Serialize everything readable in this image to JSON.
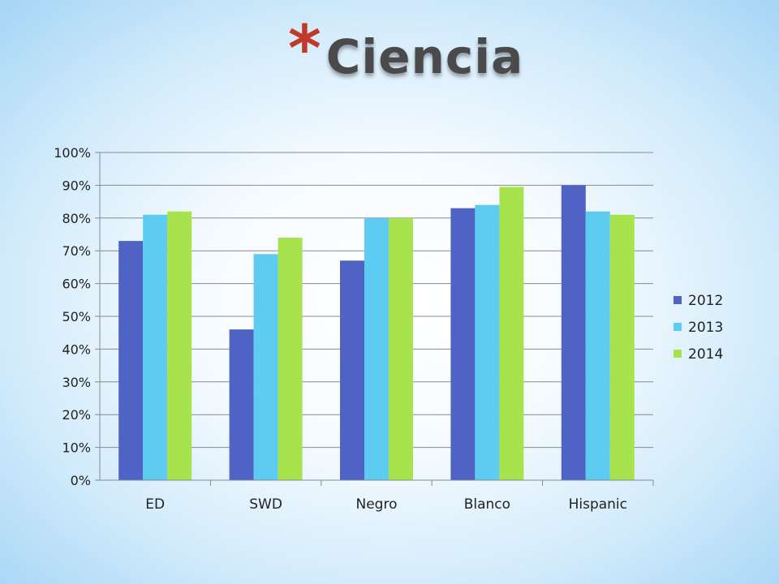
{
  "slide": {
    "star": "*",
    "title": "Ciencia"
  },
  "chart_data": {
    "type": "bar",
    "title": "",
    "xlabel": "",
    "ylabel": "",
    "categories": [
      "ED",
      "SWD",
      "Negro",
      "Blanco",
      "Hispanic"
    ],
    "series": [
      {
        "name": "2012",
        "color": "#4f63c4",
        "values": [
          73,
          46,
          67,
          83,
          90
        ]
      },
      {
        "name": "2013",
        "color": "#5ecbf1",
        "values": [
          81,
          69,
          80,
          84,
          82
        ]
      },
      {
        "name": "2014",
        "color": "#a6e34d",
        "values": [
          82,
          74,
          80,
          89.5,
          81
        ]
      }
    ],
    "ylim": [
      0,
      100
    ],
    "y_ticks": [
      "0%",
      "10%",
      "20%",
      "30%",
      "40%",
      "50%",
      "60%",
      "70%",
      "80%",
      "90%",
      "100%"
    ],
    "y_unit": "%",
    "grid": true,
    "legend_position": "right"
  }
}
